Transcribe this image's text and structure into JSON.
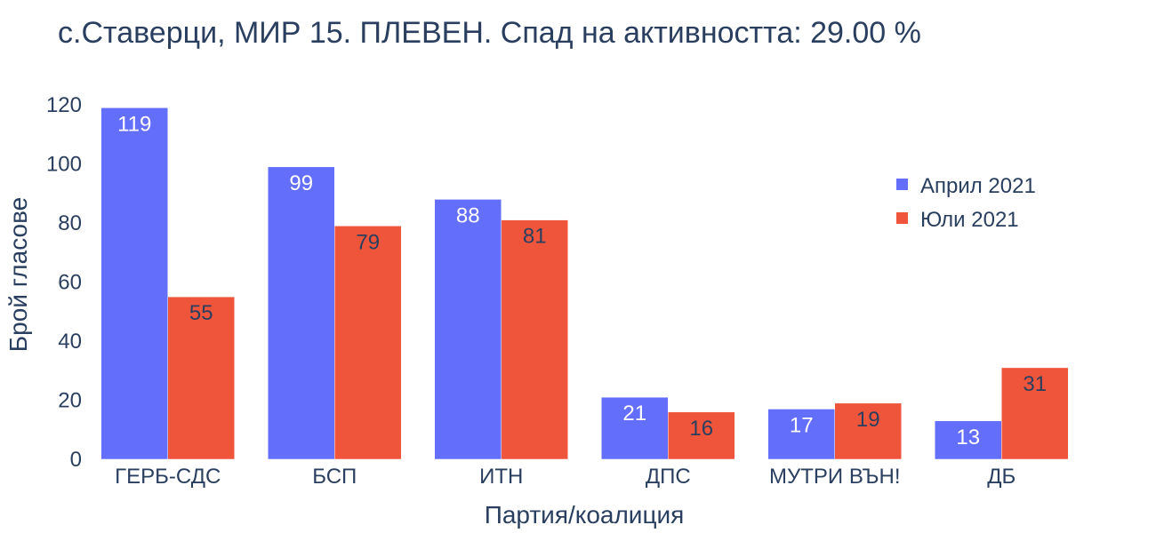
{
  "chart_data": {
    "type": "bar",
    "title": "с.Ставерци, МИР 15. ПЛЕВЕН. Спад на активността: 29.00 %",
    "xlabel": "Партия/коалиция",
    "ylabel": "Брой гласове",
    "ylim": [
      0,
      120
    ],
    "yticks": [
      0,
      20,
      40,
      60,
      80,
      100,
      120
    ],
    "categories": [
      "ГЕРБ-СДС",
      "БСП",
      "ИТН",
      "ДПС",
      "МУТРИ ВЪН!",
      "ДБ"
    ],
    "series": [
      {
        "name": "Април 2021",
        "color": "#636efa",
        "label_color": "#ffffff",
        "values": [
          119,
          99,
          88,
          21,
          17,
          13
        ]
      },
      {
        "name": "Юли 2021",
        "color": "#ef553b",
        "label_color": "#2a3f5f",
        "values": [
          55,
          79,
          81,
          16,
          19,
          31
        ]
      }
    ],
    "legend": "top-right",
    "grid": false
  }
}
